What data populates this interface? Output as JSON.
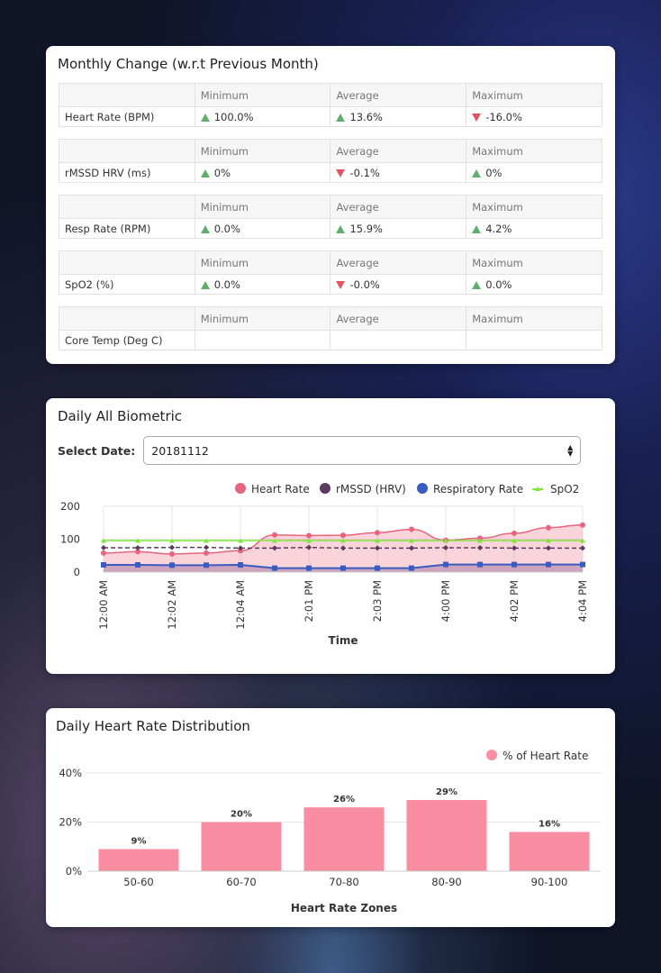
{
  "monthly": {
    "title": "Monthly Change (w.r.t Previous Month)",
    "headers": [
      "Minimum",
      "Average",
      "Maximum"
    ],
    "rows": [
      {
        "label": "Heart Rate (BPM)",
        "values": [
          {
            "dir": "up",
            "text": "100.0%"
          },
          {
            "dir": "up",
            "text": "13.6%"
          },
          {
            "dir": "down",
            "text": "-16.0%"
          }
        ]
      },
      {
        "label": "rMSSD HRV (ms)",
        "values": [
          {
            "dir": "up",
            "text": "0%"
          },
          {
            "dir": "down",
            "text": "-0.1%"
          },
          {
            "dir": "up",
            "text": "0%"
          }
        ]
      },
      {
        "label": "Resp Rate (RPM)",
        "values": [
          {
            "dir": "up",
            "text": "0.0%"
          },
          {
            "dir": "up",
            "text": "15.9%"
          },
          {
            "dir": "up",
            "text": "4.2%"
          }
        ]
      },
      {
        "label": "SpO2 (%)",
        "values": [
          {
            "dir": "up",
            "text": "0.0%"
          },
          {
            "dir": "down",
            "text": "-0.0%"
          },
          {
            "dir": "up",
            "text": "0.0%"
          }
        ]
      },
      {
        "label": "Core Temp (Deg C)",
        "values": [
          {
            "dir": "",
            "text": ""
          },
          {
            "dir": "",
            "text": ""
          },
          {
            "dir": "",
            "text": ""
          }
        ]
      }
    ],
    "colors": {
      "up": "#5fae6e",
      "down": "#e2545f"
    }
  },
  "biometric": {
    "title": "Daily All Biometric",
    "select_label": "Select Date:",
    "select_value": "20181112"
  },
  "distribution": {
    "title": "Daily Heart Rate Distribution"
  },
  "chart_data": [
    {
      "type": "line",
      "title": "Daily All Biometric",
      "xlabel": "Time",
      "ylabel": "",
      "ylim": [
        0,
        200
      ],
      "yticks": [
        0,
        100,
        200
      ],
      "x": [
        "12:00 AM",
        "",
        "12:02 AM",
        "",
        "12:04 AM",
        "",
        "2:01 PM",
        "",
        "2:03 PM",
        "",
        "4:00 PM",
        "",
        "4:02 PM",
        "",
        "4:04 PM"
      ],
      "xtick_labels": [
        "12:00 AM",
        "12:02 AM",
        "12:04 AM",
        "2:01 PM",
        "2:03 PM",
        "4:00 PM",
        "4:02 PM",
        "4:04 PM"
      ],
      "series": [
        {
          "name": "Heart Rate",
          "color": "#e8647e",
          "style": "area-spline",
          "marker": "circle",
          "values": [
            58,
            62,
            55,
            58,
            65,
            113,
            111,
            112,
            120,
            130,
            97,
            103,
            118,
            135,
            143
          ]
        },
        {
          "name": "rMSSD (HRV)",
          "color": "#5a3a5e",
          "style": "dashed",
          "marker": "diamond",
          "values": [
            74,
            74,
            75,
            75,
            73,
            73,
            75,
            73,
            73,
            73,
            74,
            74,
            73,
            73,
            73
          ]
        },
        {
          "name": "Respiratory Rate",
          "color": "#3a5bc0",
          "style": "area",
          "marker": "square",
          "values": [
            22,
            22,
            21,
            21,
            22,
            12,
            12,
            12,
            12,
            12,
            23,
            23,
            23,
            23,
            23
          ]
        },
        {
          "name": "SpO2",
          "color": "#7de83a",
          "style": "line",
          "marker": "triangle",
          "values": [
            96,
            96,
            96,
            96,
            96,
            96,
            96,
            96,
            96,
            96,
            96,
            96,
            96,
            96,
            96
          ]
        }
      ],
      "legend": "top-right"
    },
    {
      "type": "bar",
      "title": "Daily Heart Rate Distribution",
      "categories": [
        "50-60",
        "60-70",
        "70-80",
        "80-90",
        "90-100"
      ],
      "series": [
        {
          "name": "% of Heart Rate",
          "color": "#f98ea2",
          "values": [
            9,
            20,
            26,
            29,
            16
          ]
        }
      ],
      "value_labels": [
        "9%",
        "20%",
        "26%",
        "29%",
        "16%"
      ],
      "xlabel": "Heart Rate Zones",
      "ylabel": "",
      "ylim": [
        0,
        40
      ],
      "yticks": [
        "0%",
        "20%",
        "40%"
      ],
      "legend": "top-right"
    }
  ]
}
